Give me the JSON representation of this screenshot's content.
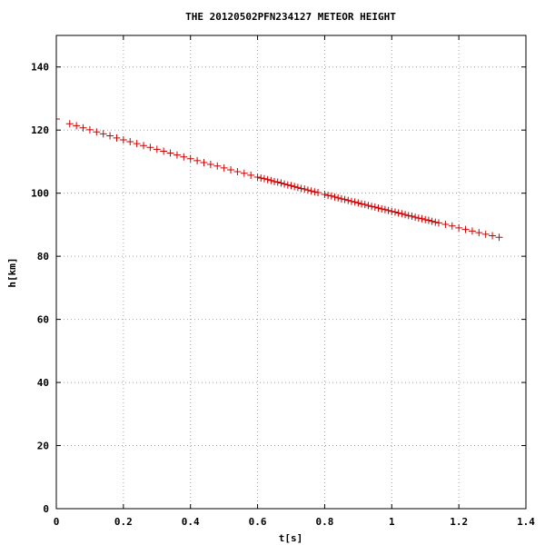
{
  "chart_data": {
    "type": "scatter",
    "title": "THE 20120502PFN234127 METEOR HEIGHT",
    "xlabel": "t[s]",
    "ylabel": "h[km]",
    "xlim": [
      0,
      1.4
    ],
    "ylim": [
      0,
      150
    ],
    "xticks": [
      0,
      0.2,
      0.4,
      0.6,
      0.8,
      1,
      1.2,
      1.4
    ],
    "xtick_labels": [
      "0",
      "0.2",
      "0.4",
      "0.6",
      "0.8",
      "1",
      "1.2",
      "1.4"
    ],
    "yticks": [
      0,
      20,
      40,
      60,
      80,
      100,
      120,
      140
    ],
    "ytick_labels": [
      "0",
      "20",
      "40",
      "60",
      "80",
      "100",
      "120",
      "140"
    ],
    "grid": true,
    "legend": "none",
    "marker_color": "#cc0000",
    "series": [
      {
        "x": [
          0.0,
          0.04,
          0.06,
          0.08,
          0.1,
          0.12,
          0.14,
          0.16,
          0.18,
          0.2,
          0.22,
          0.24,
          0.26,
          0.28,
          0.3,
          0.32,
          0.34,
          0.36,
          0.38,
          0.4,
          0.42,
          0.44,
          0.46,
          0.48,
          0.5,
          0.52,
          0.54,
          0.56,
          0.58,
          0.6,
          0.61,
          0.62,
          0.63,
          0.64,
          0.65,
          0.66,
          0.67,
          0.68,
          0.69,
          0.7,
          0.71,
          0.72,
          0.73,
          0.74,
          0.75,
          0.76,
          0.77,
          0.78,
          0.8,
          0.81,
          0.82,
          0.83,
          0.84,
          0.85,
          0.86,
          0.87,
          0.88,
          0.89,
          0.9,
          0.91,
          0.92,
          0.93,
          0.94,
          0.95,
          0.96,
          0.97,
          0.98,
          0.99,
          1.0,
          1.01,
          1.02,
          1.03,
          1.04,
          1.05,
          1.06,
          1.07,
          1.08,
          1.09,
          1.1,
          1.11,
          1.12,
          1.13,
          1.14,
          1.16,
          1.18,
          1.2,
          1.22,
          1.24,
          1.26,
          1.28,
          1.3,
          1.32
        ],
        "y": [
          123.5,
          122.0,
          121.4,
          120.7,
          120.1,
          119.4,
          118.8,
          118.2,
          117.5,
          116.9,
          116.3,
          115.7,
          115.1,
          114.5,
          113.9,
          113.3,
          112.7,
          112.1,
          111.5,
          110.9,
          110.3,
          109.7,
          109.1,
          108.6,
          108.0,
          107.4,
          106.8,
          106.3,
          105.7,
          105.1,
          104.8,
          104.6,
          104.3,
          104.0,
          103.7,
          103.5,
          103.2,
          102.9,
          102.6,
          102.4,
          102.1,
          101.8,
          101.5,
          101.3,
          101.0,
          100.7,
          100.4,
          100.2,
          99.6,
          99.3,
          99.1,
          98.8,
          98.5,
          98.2,
          98.0,
          97.7,
          97.4,
          97.2,
          96.9,
          96.6,
          96.4,
          96.1,
          95.8,
          95.6,
          95.3,
          95.0,
          94.8,
          94.5,
          94.2,
          94.0,
          93.7,
          93.5,
          93.2,
          92.9,
          92.7,
          92.4,
          92.1,
          91.9,
          91.6,
          91.4,
          91.1,
          90.8,
          90.6,
          90.1,
          89.6,
          89.0,
          88.5,
          88.0,
          87.5,
          87.0,
          86.5,
          86.0
        ]
      }
    ]
  }
}
